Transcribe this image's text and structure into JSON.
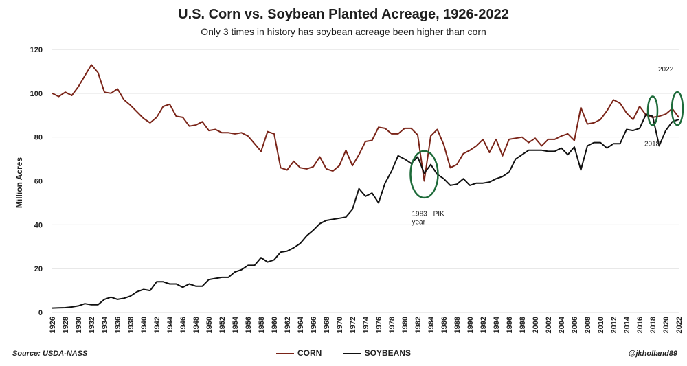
{
  "chart_data": {
    "type": "line",
    "title": "U.S. Corn vs. Soybean Planted Acreage, 1926-2022",
    "subtitle": "Only 3 times in history has soybean acreage been higher than corn",
    "ylabel": "Million Acres",
    "xlabel": "",
    "xlim": [
      1926,
      2022
    ],
    "ylim": [
      0,
      120
    ],
    "yticks": [
      0,
      20,
      40,
      60,
      80,
      100,
      120
    ],
    "xtick_step": 2,
    "grid": "horizontal",
    "legend_position": "bottom-center",
    "x": [
      1926,
      1927,
      1928,
      1929,
      1930,
      1931,
      1932,
      1933,
      1934,
      1935,
      1936,
      1937,
      1938,
      1939,
      1940,
      1941,
      1942,
      1943,
      1944,
      1945,
      1946,
      1947,
      1948,
      1949,
      1950,
      1951,
      1952,
      1953,
      1954,
      1955,
      1956,
      1957,
      1958,
      1959,
      1960,
      1961,
      1962,
      1963,
      1964,
      1965,
      1966,
      1967,
      1968,
      1969,
      1970,
      1971,
      1972,
      1973,
      1974,
      1975,
      1976,
      1977,
      1978,
      1979,
      1980,
      1981,
      1982,
      1983,
      1984,
      1985,
      1986,
      1987,
      1988,
      1989,
      1990,
      1991,
      1992,
      1993,
      1994,
      1995,
      1996,
      1997,
      1998,
      1999,
      2000,
      2001,
      2002,
      2003,
      2004,
      2005,
      2006,
      2007,
      2008,
      2009,
      2010,
      2011,
      2012,
      2013,
      2014,
      2015,
      2016,
      2017,
      2018,
      2019,
      2020,
      2021,
      2022
    ],
    "series": [
      {
        "name": "CORN",
        "color": "#7a2418",
        "values": [
          100,
          98.5,
          100.5,
          99,
          103,
          108,
          113,
          109.5,
          100.5,
          100,
          102,
          97,
          94.5,
          91.5,
          88.5,
          86.5,
          89,
          94,
          95,
          89.5,
          89,
          85,
          85.5,
          87,
          83,
          83.5,
          82,
          82,
          81.5,
          82,
          80.5,
          77,
          73.5,
          82.5,
          81.5,
          66,
          65,
          69,
          66,
          65.5,
          66.5,
          71,
          65.5,
          64.5,
          67,
          74,
          67,
          72,
          78,
          78.5,
          84.5,
          84,
          81.5,
          81.5,
          84,
          84,
          81,
          60,
          80.5,
          83.5,
          76.5,
          66,
          67.5,
          72.5,
          74,
          76,
          79,
          73,
          79,
          71.5,
          79,
          79.5,
          80,
          77.5,
          79.5,
          76,
          79,
          79,
          80.5,
          81.5,
          78.5,
          93.5,
          86,
          86.5,
          88,
          92,
          97,
          95.5,
          91,
          88,
          94,
          90,
          89,
          89.5,
          90.5,
          93,
          89
        ]
      },
      {
        "name": "SOYBEANS",
        "color": "#111111",
        "values": [
          2,
          2.1,
          2.2,
          2.5,
          3,
          4,
          3.5,
          3.5,
          6,
          7,
          6,
          6.5,
          7.5,
          9.5,
          10.5,
          10,
          14,
          14,
          13,
          13,
          11.5,
          13,
          12,
          12,
          15,
          15.5,
          16,
          16,
          18.5,
          19.5,
          21.5,
          21.5,
          25,
          23,
          24,
          27.5,
          28,
          29.5,
          31.5,
          35,
          37.5,
          40.5,
          42,
          42.5,
          43,
          43.5,
          47,
          56.5,
          53,
          54.5,
          50,
          59,
          64.5,
          71.5,
          70,
          68,
          71,
          63.5,
          67.5,
          63,
          61,
          58,
          58.5,
          61,
          58,
          59,
          59,
          59.5,
          61,
          62,
          64,
          70,
          72,
          74,
          74,
          74,
          73.5,
          73.5,
          75,
          72,
          75.5,
          65,
          76,
          77.5,
          77.5,
          75,
          77,
          77,
          83.5,
          83,
          84,
          90.5,
          89.5,
          76,
          83,
          87,
          88
        ]
      }
    ],
    "annotations": [
      {
        "text": "1983 - PIK year",
        "x": 1983
      },
      {
        "text": "2018",
        "x": 2018
      },
      {
        "text": "2022",
        "x": 2022
      }
    ]
  },
  "footer": {
    "source": "Source: USDA-NASS",
    "credit": "@jkholland89"
  }
}
